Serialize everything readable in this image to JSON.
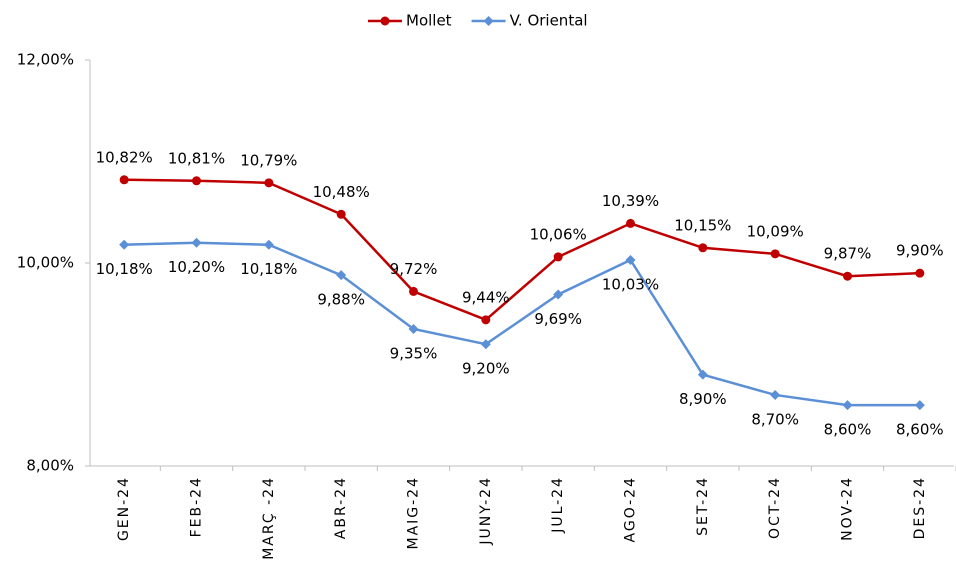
{
  "chart_data": {
    "type": "line",
    "categories": [
      "GEN-24",
      "FEB-24",
      "MARÇ -24",
      "ABR-24",
      "MAIG-24",
      "JUNY-24",
      "JUL-24",
      "AGO-24",
      "SET-24",
      "OCT-24",
      "NOV-24",
      "DES-24"
    ],
    "series": [
      {
        "name": "Mollet",
        "color": "#c00000",
        "marker": "circle",
        "label_position": "above",
        "values": [
          10.82,
          10.81,
          10.79,
          10.48,
          9.72,
          9.44,
          10.06,
          10.39,
          10.15,
          10.09,
          9.87,
          9.9
        ],
        "value_labels": [
          "10,82%",
          "10,81%",
          "10,79%",
          "10,48%",
          "9,72%",
          "9,44%",
          "10,06%",
          "10,39%",
          "10,15%",
          "10,09%",
          "9,87%",
          "9,90%"
        ]
      },
      {
        "name": "V. Oriental",
        "color": "#5b8fd6",
        "marker": "diamond",
        "label_position": "below",
        "values": [
          10.18,
          10.2,
          10.18,
          9.88,
          9.35,
          9.2,
          9.69,
          10.03,
          8.9,
          8.7,
          8.6,
          8.6
        ],
        "value_labels": [
          "10,18%",
          "10,20%",
          "10,18%",
          "9,88%",
          "9,35%",
          "9,20%",
          "9,69%",
          "10,03%",
          "8,90%",
          "8,70%",
          "8,60%",
          "8,60%"
        ]
      }
    ],
    "ylim": [
      8,
      12
    ],
    "yticks": [
      {
        "value": 8,
        "label": "8,00%"
      },
      {
        "value": 10,
        "label": "10,00%"
      },
      {
        "value": 12,
        "label": "12,00%"
      }
    ],
    "grid": false,
    "legend": "top"
  }
}
